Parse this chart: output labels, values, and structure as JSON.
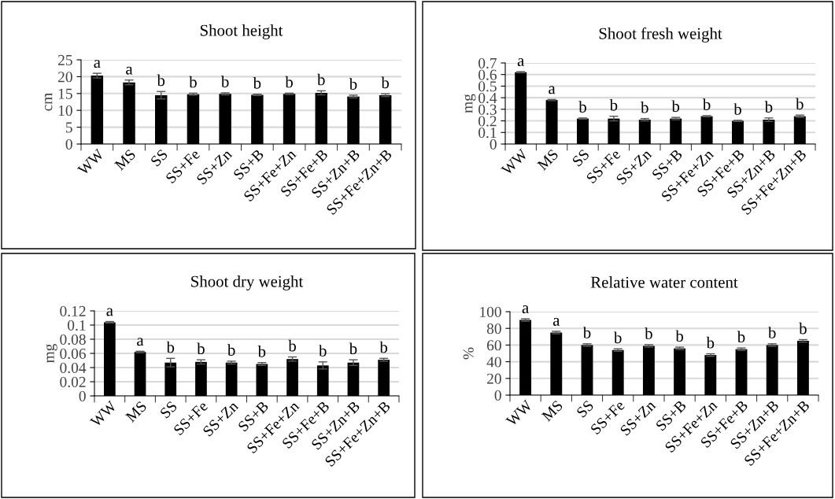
{
  "chart_data": [
    {
      "type": "bar",
      "title": "Shoot height",
      "ylabel": "cm",
      "categories": [
        "WW",
        "MS",
        "SS",
        "SS+Fe",
        "SS+Zn",
        "SS+B",
        "SS+Fe+Zn",
        "SS+Fe+B",
        "SS+Zn+B",
        "SS+Fe+Zn+B"
      ],
      "color": "#000000",
      "values": [
        20.3,
        18.3,
        14.5,
        14.8,
        14.9,
        14.6,
        14.9,
        15.2,
        14.1,
        14.5
      ],
      "errors": [
        0.7,
        0.7,
        1.1,
        0.3,
        0.3,
        0.2,
        0.2,
        0.6,
        0.4,
        0.4
      ],
      "ylim": [
        0,
        25
      ],
      "yticks": [
        0,
        5,
        10,
        15,
        20,
        25
      ],
      "grid": "y",
      "annotations": [
        {
          "text": "a",
          "x": "WW",
          "y": 20.3
        },
        {
          "text": "a",
          "x": "MS",
          "y": 18.3
        },
        {
          "text": "b",
          "x": "SS",
          "y": 14.5
        },
        {
          "text": "b",
          "x": "SS+Fe",
          "y": 14.8
        },
        {
          "text": "b",
          "x": "SS+Zn",
          "y": 14.9
        },
        {
          "text": "b",
          "x": "SS+B",
          "y": 14.6
        },
        {
          "text": "b",
          "x": "SS+Fe+Zn",
          "y": 14.9
        },
        {
          "text": "b",
          "x": "SS+Fe+B",
          "y": 15.2
        },
        {
          "text": "b",
          "x": "SS+Zn+B",
          "y": 14.1
        },
        {
          "text": "b",
          "x": "SS+Fe+Zn+B",
          "y": 14.5
        }
      ]
    },
    {
      "type": "bar",
      "title": "Shoot fresh weight",
      "ylabel": "mg",
      "categories": [
        "WW",
        "MS",
        "SS",
        "SS+Fe",
        "SS+Zn",
        "SS+B",
        "SS+Fe+Zn",
        "SS+Fe+B",
        "SS+Zn+B",
        "SS+Fe+Zn+B"
      ],
      "color": "#000000",
      "values": [
        0.62,
        0.38,
        0.22,
        0.22,
        0.21,
        0.22,
        0.24,
        0.2,
        0.21,
        0.24
      ],
      "errors": [
        0.005,
        0.005,
        0.005,
        0.02,
        0.01,
        0.01,
        0.005,
        0.005,
        0.015,
        0.01
      ],
      "ylim": [
        0,
        0.7
      ],
      "yticks": [
        0,
        0.1,
        0.2,
        0.3,
        0.4,
        0.5,
        0.6,
        0.7
      ],
      "grid": "y",
      "annotations": [
        {
          "text": "a",
          "x": "WW",
          "y": 0.62
        },
        {
          "text": "a",
          "x": "MS",
          "y": 0.38
        },
        {
          "text": "b",
          "x": "SS",
          "y": 0.22
        },
        {
          "text": "b",
          "x": "SS+Fe",
          "y": 0.22
        },
        {
          "text": "b",
          "x": "SS+Zn",
          "y": 0.21
        },
        {
          "text": "b",
          "x": "SS+B",
          "y": 0.22
        },
        {
          "text": "b",
          "x": "SS+Fe+Zn",
          "y": 0.24
        },
        {
          "text": "b",
          "x": "SS+Fe+B",
          "y": 0.2
        },
        {
          "text": "b",
          "x": "SS+Zn+B",
          "y": 0.21
        },
        {
          "text": "b",
          "x": "SS+Fe+Zn+B",
          "y": 0.24
        }
      ]
    },
    {
      "type": "bar",
      "title": "Shoot dry weight",
      "ylabel": "mg",
      "categories": [
        "WW",
        "MS",
        "SS",
        "SS+Fe",
        "SS+Zn",
        "SS+B",
        "SS+Fe+Zn",
        "SS+Fe+B",
        "SS+Zn+B",
        "SS+Fe+Zn+B"
      ],
      "color": "#000000",
      "values": [
        0.104,
        0.062,
        0.047,
        0.048,
        0.047,
        0.045,
        0.052,
        0.043,
        0.047,
        0.051
      ],
      "errors": [
        0.001,
        0.001,
        0.006,
        0.003,
        0.002,
        0.002,
        0.003,
        0.005,
        0.004,
        0.002
      ],
      "ylim": [
        0,
        0.12
      ],
      "yticks": [
        0,
        0.02,
        0.04,
        0.06,
        0.08,
        0.1,
        0.12
      ],
      "grid": "y",
      "annotations": [
        {
          "text": "a",
          "x": "WW",
          "y": 0.104
        },
        {
          "text": "a",
          "x": "MS",
          "y": 0.062
        },
        {
          "text": "b",
          "x": "SS",
          "y": 0.047
        },
        {
          "text": "b",
          "x": "SS+Fe",
          "y": 0.048
        },
        {
          "text": "b",
          "x": "SS+Zn",
          "y": 0.047
        },
        {
          "text": "b",
          "x": "SS+B",
          "y": 0.045
        },
        {
          "text": "b",
          "x": "SS+Fe+Zn",
          "y": 0.052
        },
        {
          "text": "b",
          "x": "SS+Fe+B",
          "y": 0.043
        },
        {
          "text": "b",
          "x": "SS+Zn+B",
          "y": 0.047
        },
        {
          "text": "b",
          "x": "SS+Fe+Zn+B",
          "y": 0.051
        }
      ]
    },
    {
      "type": "bar",
      "title": "Relative water content",
      "ylabel": "%",
      "categories": [
        "WW",
        "MS",
        "SS",
        "SS+Fe",
        "SS+Zn",
        "SS+B",
        "SS+Fe+Zn",
        "SS+Fe+B",
        "SS+Zn+B",
        "SS+Fe+Zn+B"
      ],
      "color": "#000000",
      "values": [
        90,
        75,
        60,
        54,
        59,
        56,
        48,
        55,
        60,
        65
      ],
      "errors": [
        1.5,
        1.5,
        1.5,
        1.5,
        1.5,
        1.5,
        1.5,
        1.5,
        1.5,
        1.5
      ],
      "ylim": [
        0,
        100
      ],
      "yticks": [
        0,
        20,
        40,
        60,
        80,
        100
      ],
      "grid": "y",
      "annotations": [
        {
          "text": "a",
          "x": "WW",
          "y": 90
        },
        {
          "text": "a",
          "x": "MS",
          "y": 75
        },
        {
          "text": "b",
          "x": "SS",
          "y": 60
        },
        {
          "text": "b",
          "x": "SS+Fe",
          "y": 54
        },
        {
          "text": "b",
          "x": "SS+Zn",
          "y": 59
        },
        {
          "text": "b",
          "x": "SS+B",
          "y": 56
        },
        {
          "text": "b",
          "x": "SS+Fe+Zn",
          "y": 48
        },
        {
          "text": "b",
          "x": "SS+Fe+B",
          "y": 55
        },
        {
          "text": "b",
          "x": "SS+Zn+B",
          "y": 60
        },
        {
          "text": "b",
          "x": "SS+Fe+Zn+B",
          "y": 65
        }
      ]
    }
  ]
}
